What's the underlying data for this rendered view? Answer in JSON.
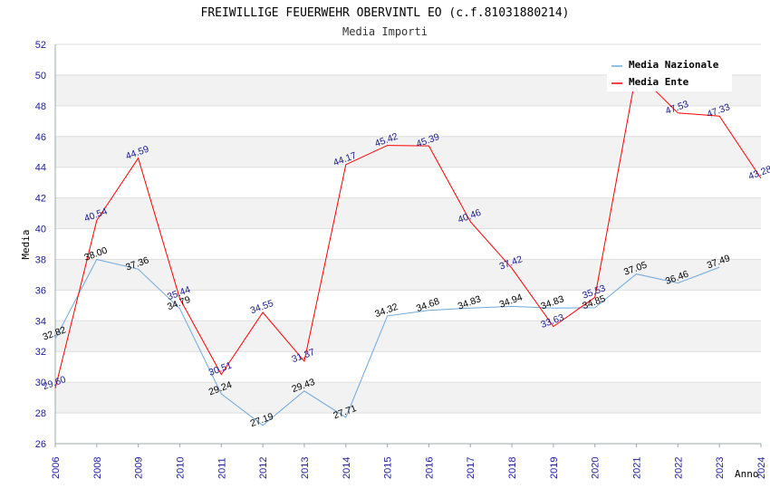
{
  "chart_data": {
    "type": "line",
    "title": "FREIWILLIGE FEUERWEHR OBERVINTL EO (c.f.81031880214)",
    "subtitle": "Media Importi",
    "xlabel": "Anno",
    "ylabel": "Media",
    "ylim": [
      26,
      52
    ],
    "yticks": [
      "26",
      "28",
      "30",
      "32",
      "34",
      "36",
      "38",
      "40",
      "42",
      "44",
      "46",
      "48",
      "50",
      "52"
    ],
    "categories": [
      "2006",
      "2008",
      "2009",
      "2010",
      "2011",
      "2012",
      "2013",
      "2014",
      "2015",
      "2016",
      "2017",
      "2018",
      "2019",
      "2020",
      "2021",
      "2022",
      "2023",
      "2024"
    ],
    "legend_position": "top-right",
    "series": [
      {
        "name": "Media Nazionale",
        "color": "#6fa8dc",
        "values": [
          32.82,
          38.0,
          37.36,
          34.79,
          29.24,
          27.19,
          29.43,
          27.71,
          34.32,
          34.68,
          34.83,
          34.94,
          34.83,
          34.85,
          37.05,
          36.46,
          37.49,
          null
        ],
        "labels": [
          "32.82",
          "38.00",
          "37.36",
          "34.79",
          "29.24",
          "27.19",
          "29.43",
          "27.71",
          "34.32",
          "34.68",
          "34.83",
          "34.94",
          "34.83",
          "34.85",
          "37.05",
          "36.46",
          "37.49",
          ""
        ]
      },
      {
        "name": "Media Ente",
        "color": "#ff0000",
        "values": [
          29.6,
          40.54,
          44.59,
          35.44,
          30.51,
          34.55,
          31.37,
          44.17,
          45.42,
          45.39,
          40.46,
          37.42,
          33.63,
          35.53,
          50.2,
          47.53,
          47.33,
          43.28
        ],
        "labels": [
          "29.60",
          "40.54",
          "44.59",
          "35.44",
          "30.51",
          "34.55",
          "31.37",
          "44.17",
          "45.42",
          "45.39",
          "40.46",
          "37.42",
          "33.63",
          "35.53",
          "",
          "47.53",
          "47.33",
          "43.28"
        ]
      }
    ]
  }
}
